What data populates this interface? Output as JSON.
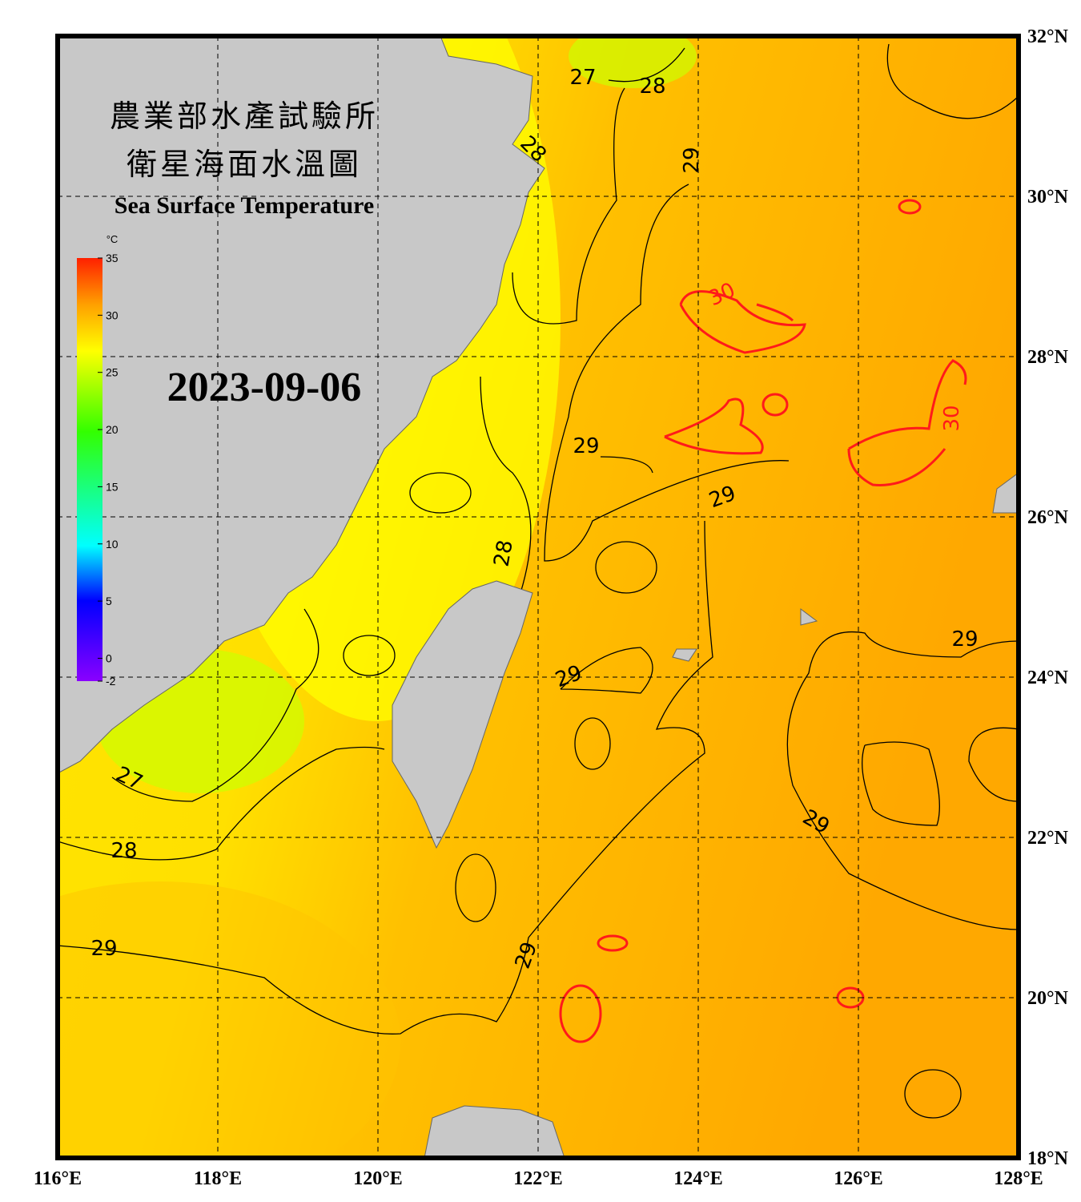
{
  "header": {
    "title_lines": [
      "農業部水產試驗所",
      "衛星海面水溫圖"
    ],
    "subtitle": "Sea Surface Temperature",
    "date": "2023-09-06"
  },
  "colorbar": {
    "unit": "°C",
    "lim": [
      -2,
      35
    ],
    "ticks": [
      35,
      30,
      25,
      20,
      15,
      10,
      5,
      0,
      -2
    ]
  },
  "longitude": {
    "lim": [
      116,
      128
    ],
    "ticks": [
      {
        "value": 116,
        "label": "116°E"
      },
      {
        "value": 118,
        "label": "118°E"
      },
      {
        "value": 120,
        "label": "120°E"
      },
      {
        "value": 122,
        "label": "122°E"
      },
      {
        "value": 124,
        "label": "124°E"
      },
      {
        "value": 126,
        "label": "126°E"
      },
      {
        "value": 128,
        "label": "128°E"
      }
    ]
  },
  "latitude": {
    "lim": [
      18,
      32
    ],
    "ticks": [
      {
        "value": 32,
        "label": "32°N"
      },
      {
        "value": 30,
        "label": "30°N"
      },
      {
        "value": 28,
        "label": "28°N"
      },
      {
        "value": 26,
        "label": "26°N"
      },
      {
        "value": 24,
        "label": "24°N"
      },
      {
        "value": 22,
        "label": "22°N"
      },
      {
        "value": 20,
        "label": "20°N"
      },
      {
        "value": 18,
        "label": "18°N"
      }
    ]
  },
  "contour_labels": [
    "27",
    "28",
    "28",
    "29",
    "30",
    "29",
    "30",
    "29",
    "28",
    "29",
    "29",
    "27",
    "29",
    "28",
    "29",
    "29"
  ]
}
